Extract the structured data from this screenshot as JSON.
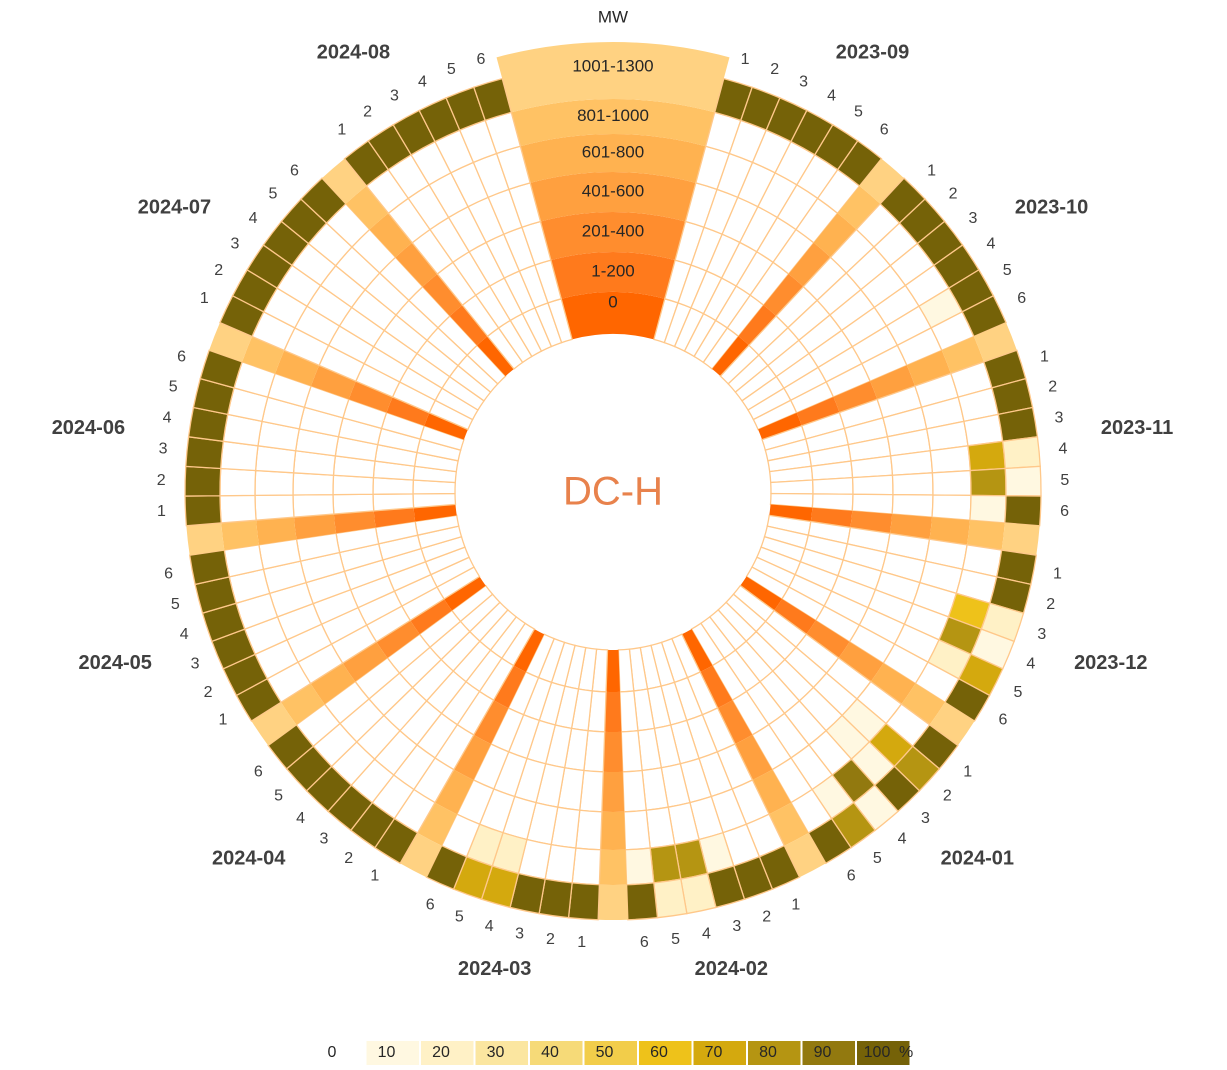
{
  "chart_data": {
    "type": "radial_heatmap",
    "title": "DC-H",
    "ring_axis_label": "MW",
    "rings": [
      "0",
      "1-200",
      "201-400",
      "401-600",
      "601-800",
      "801-1000",
      "1001-1300"
    ],
    "ring_colors": [
      "#ff6600",
      "#ff7a1c",
      "#ff8d2e",
      "#ffa03f",
      "#ffb250",
      "#ffc264",
      "#ffd282"
    ],
    "months": [
      "2023-09",
      "2023-10",
      "2023-11",
      "2023-12",
      "2024-01",
      "2024-02",
      "2024-03",
      "2024-04",
      "2024-05",
      "2024-06",
      "2024-07",
      "2024-08"
    ],
    "subs": [
      1,
      2,
      3,
      4,
      5,
      6
    ],
    "values": [
      [
        [
          0,
          0,
          0,
          0,
          0,
          0,
          100
        ],
        [
          0,
          0,
          0,
          0,
          0,
          0,
          100
        ],
        [
          0,
          0,
          0,
          0,
          0,
          0,
          100
        ],
        [
          0,
          0,
          0,
          0,
          0,
          0,
          100
        ],
        [
          0,
          0,
          0,
          0,
          0,
          0,
          100
        ],
        [
          0,
          0,
          0,
          0,
          0,
          0,
          100
        ]
      ],
      [
        [
          0,
          0,
          0,
          0,
          0,
          0,
          100
        ],
        [
          0,
          0,
          0,
          0,
          0,
          0,
          100
        ],
        [
          0,
          0,
          0,
          0,
          0,
          0,
          100
        ],
        [
          0,
          0,
          0,
          0,
          0,
          0,
          100
        ],
        [
          0,
          0,
          0,
          0,
          0,
          10,
          100
        ],
        [
          0,
          0,
          0,
          0,
          0,
          0,
          100
        ]
      ],
      [
        [
          0,
          0,
          0,
          0,
          0,
          0,
          100
        ],
        [
          0,
          0,
          0,
          0,
          0,
          0,
          100
        ],
        [
          0,
          0,
          0,
          0,
          0,
          0,
          100
        ],
        [
          0,
          0,
          0,
          0,
          0,
          70,
          20
        ],
        [
          0,
          0,
          0,
          0,
          0,
          80,
          10
        ],
        [
          0,
          0,
          0,
          0,
          0,
          10,
          100
        ]
      ],
      [
        [
          0,
          0,
          0,
          0,
          0,
          0,
          100
        ],
        [
          0,
          0,
          0,
          0,
          0,
          0,
          100
        ],
        [
          0,
          0,
          0,
          0,
          0,
          60,
          20
        ],
        [
          0,
          0,
          0,
          0,
          0,
          80,
          10
        ],
        [
          0,
          0,
          0,
          0,
          0,
          20,
          70
        ],
        [
          0,
          0,
          0,
          0,
          0,
          0,
          100
        ]
      ],
      [
        [
          0,
          0,
          0,
          0,
          0,
          0,
          100
        ],
        [
          0,
          0,
          0,
          0,
          10,
          70,
          80
        ],
        [
          0,
          0,
          0,
          0,
          10,
          10,
          100
        ],
        [
          0,
          0,
          0,
          0,
          0,
          90,
          10
        ],
        [
          0,
          0,
          0,
          0,
          0,
          10,
          80
        ],
        [
          0,
          0,
          0,
          0,
          0,
          0,
          100
        ]
      ],
      [
        [
          0,
          0,
          0,
          0,
          0,
          0,
          100
        ],
        [
          0,
          0,
          0,
          0,
          0,
          0,
          100
        ],
        [
          0,
          0,
          0,
          0,
          0,
          10,
          100
        ],
        [
          0,
          0,
          0,
          0,
          0,
          80,
          20
        ],
        [
          0,
          0,
          0,
          0,
          0,
          80,
          20
        ],
        [
          0,
          0,
          0,
          0,
          0,
          10,
          100
        ]
      ],
      [
        [
          0,
          0,
          0,
          0,
          0,
          0,
          100
        ],
        [
          0,
          0,
          0,
          0,
          0,
          0,
          100
        ],
        [
          0,
          0,
          0,
          0,
          0,
          0,
          100
        ],
        [
          0,
          0,
          0,
          0,
          0,
          20,
          70
        ],
        [
          0,
          0,
          0,
          0,
          0,
          20,
          70
        ],
        [
          0,
          0,
          0,
          0,
          0,
          0,
          100
        ]
      ],
      [
        [
          0,
          0,
          0,
          0,
          0,
          0,
          100
        ],
        [
          0,
          0,
          0,
          0,
          0,
          0,
          100
        ],
        [
          0,
          0,
          0,
          0,
          0,
          0,
          100
        ],
        [
          0,
          0,
          0,
          0,
          0,
          0,
          100
        ],
        [
          0,
          0,
          0,
          0,
          0,
          0,
          100
        ],
        [
          0,
          0,
          0,
          0,
          0,
          0,
          100
        ]
      ],
      [
        [
          0,
          0,
          0,
          0,
          0,
          0,
          100
        ],
        [
          0,
          0,
          0,
          0,
          0,
          0,
          100
        ],
        [
          0,
          0,
          0,
          0,
          0,
          0,
          100
        ],
        [
          0,
          0,
          0,
          0,
          0,
          0,
          100
        ],
        [
          0,
          0,
          0,
          0,
          0,
          0,
          100
        ],
        [
          0,
          0,
          0,
          0,
          0,
          0,
          100
        ]
      ],
      [
        [
          0,
          0,
          0,
          0,
          0,
          0,
          100
        ],
        [
          0,
          0,
          0,
          0,
          0,
          0,
          100
        ],
        [
          0,
          0,
          0,
          0,
          0,
          0,
          100
        ],
        [
          0,
          0,
          0,
          0,
          0,
          0,
          100
        ],
        [
          0,
          0,
          0,
          0,
          0,
          0,
          100
        ],
        [
          0,
          0,
          0,
          0,
          0,
          0,
          100
        ]
      ],
      [
        [
          0,
          0,
          0,
          0,
          0,
          0,
          100
        ],
        [
          0,
          0,
          0,
          0,
          0,
          0,
          100
        ],
        [
          0,
          0,
          0,
          0,
          0,
          0,
          100
        ],
        [
          0,
          0,
          0,
          0,
          0,
          0,
          100
        ],
        [
          0,
          0,
          0,
          0,
          0,
          0,
          100
        ],
        [
          0,
          0,
          0,
          0,
          0,
          0,
          100
        ]
      ],
      [
        [
          0,
          0,
          0,
          0,
          0,
          0,
          100
        ],
        [
          0,
          0,
          0,
          0,
          0,
          0,
          100
        ],
        [
          0,
          0,
          0,
          0,
          0,
          0,
          100
        ],
        [
          0,
          0,
          0,
          0,
          0,
          0,
          100
        ],
        [
          0,
          0,
          0,
          0,
          0,
          0,
          100
        ],
        [
          0,
          0,
          0,
          0,
          0,
          0,
          100
        ]
      ]
    ],
    "legend_ticks": [
      0,
      10,
      20,
      30,
      40,
      50,
      60,
      70,
      80,
      90,
      100
    ],
    "legend_colors": [
      "#fff8e1",
      "#fff1c6",
      "#fbe6a0",
      "#f6da78",
      "#f2cd4a",
      "#eec21a",
      "#d4a90e",
      "#b59512",
      "#92790f",
      "#756208"
    ],
    "legend_unit": "%"
  }
}
